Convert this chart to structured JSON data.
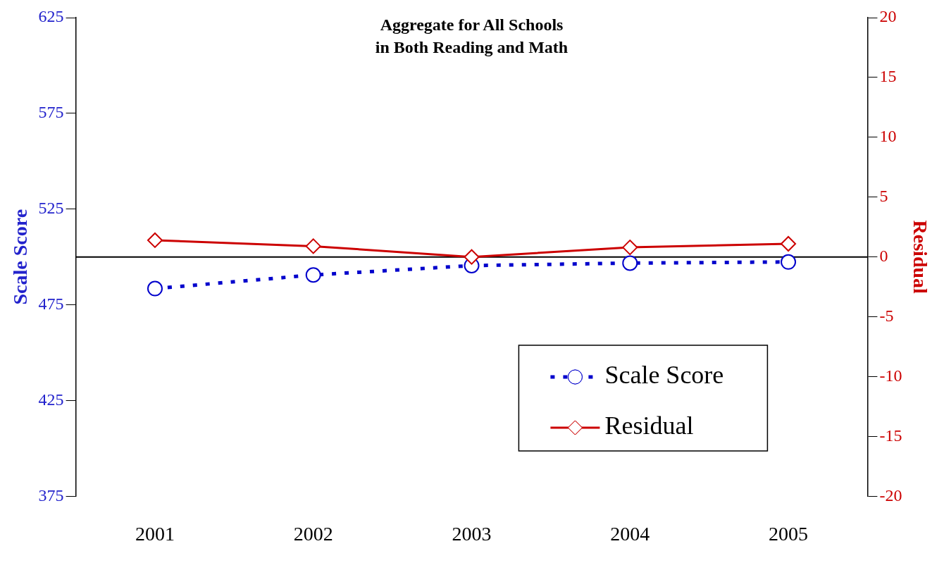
{
  "chart_data": {
    "type": "line",
    "title": "Aggregate for All Schools\nin Both Reading and Math",
    "ylabel": "Scale Score",
    "y2label": "Residual",
    "categories": [
      "2001",
      "2002",
      "2003",
      "2004",
      "2005"
    ],
    "series": [
      {
        "name": "Scale Score",
        "color": "#0000cc",
        "values": [
          483.5,
          490.6,
          495.5,
          496.8,
          497.4
        ],
        "marker": "circle",
        "line_style": "dotted"
      },
      {
        "name": "Residual",
        "color": "#cc0000",
        "values": [
          1.4,
          0.9,
          0.0,
          0.8,
          1.1
        ],
        "axis": "y2",
        "marker": "diamond",
        "line_style": "solid"
      }
    ],
    "ylim": [
      375,
      625
    ],
    "yticks": [
      375,
      425,
      475,
      525,
      575,
      625
    ],
    "y2lim": [
      -20,
      20
    ],
    "y2ticks": [
      -20,
      -15,
      -10,
      -5,
      0,
      5,
      10,
      15,
      20
    ],
    "ref_lines": [
      {
        "axis": "y2",
        "value": 0,
        "color": "#000000"
      }
    ],
    "grid": false,
    "legend": "right"
  }
}
